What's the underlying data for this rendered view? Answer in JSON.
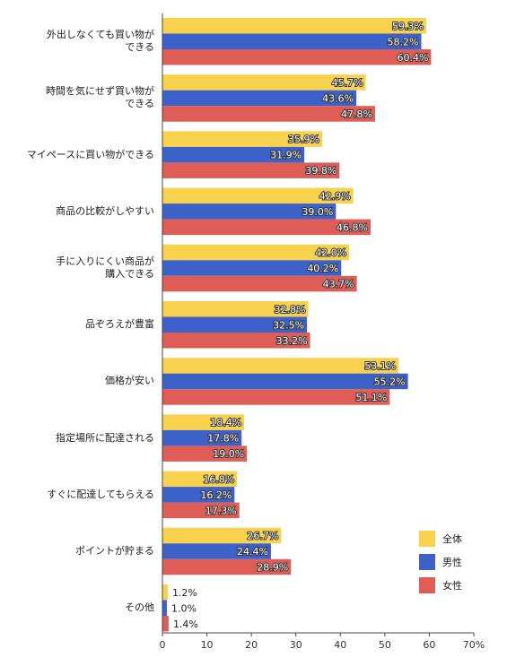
{
  "chart_data": {
    "type": "bar",
    "orientation": "horizontal",
    "categories": [
      "外出しなくても買い物が\nできる",
      "時間を気にせず買い物が\nできる",
      "マイペースに買い物ができる",
      "商品の比較がしやすい",
      "手に入りにくい商品が\n購入できる",
      "品ぞろえが豊富",
      "価格が安い",
      "指定場所に配達される",
      "すぐに配達してもらえる",
      "ポイントが貯まる",
      "その他"
    ],
    "series": [
      {
        "name": "全体",
        "color": "#f8d24c",
        "values": [
          59.3,
          45.7,
          35.9,
          42.9,
          42.0,
          32.8,
          53.1,
          18.4,
          16.8,
          26.7,
          1.2
        ],
        "value_labels": [
          "59.3%",
          "45.7%",
          "35.9%",
          "42.9%",
          "42.0%",
          "32.8%",
          "53.1%",
          "18.4%",
          "16.8%",
          "26.7%",
          "1.2%"
        ]
      },
      {
        "name": "男性",
        "color": "#3c61c9",
        "values": [
          58.2,
          43.6,
          31.9,
          39.0,
          40.2,
          32.5,
          55.2,
          17.8,
          16.2,
          24.4,
          1.0
        ],
        "value_labels": [
          "58.2%",
          "43.6%",
          "31.9%",
          "39.0%",
          "40.2%",
          "32.5%",
          "55.2%",
          "17.8%",
          "16.2%",
          "24.4%",
          "1.0%"
        ]
      },
      {
        "name": "女性",
        "color": "#de5d56",
        "values": [
          60.4,
          47.8,
          39.8,
          46.8,
          43.7,
          33.2,
          51.1,
          19.0,
          17.3,
          28.9,
          1.4
        ],
        "value_labels": [
          "60.4%",
          "47.8%",
          "39.8%",
          "46.8%",
          "43.7%",
          "33.2%",
          "51.1%",
          "19.0%",
          "17.3%",
          "28.9%",
          "1.4%"
        ]
      }
    ],
    "xlim": [
      0,
      70
    ],
    "xticks": [
      0,
      10,
      20,
      30,
      40,
      50,
      60,
      {
        "value": 70,
        "label": "70%"
      }
    ],
    "legend": "bottom-right",
    "grid": false
  }
}
